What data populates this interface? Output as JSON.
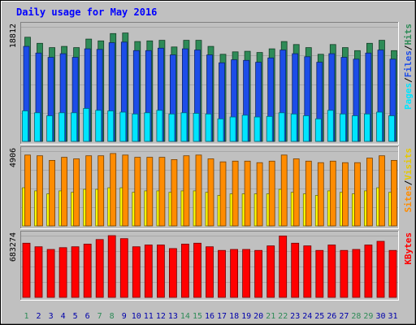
{
  "chart_data": {
    "type": "bar",
    "title": "Daily usage for May 2016",
    "colors": {
      "background": "#c0c0c0",
      "title": "#0000ff",
      "hits": "#2e8b57",
      "files": "#1c4de8",
      "pages": "#00e5ff",
      "visits": "#ffff00",
      "sites": "#ff8c00",
      "kbytes": "#ff0000",
      "weekend_label": "#2e8b57",
      "weekday_label": "#0000aa"
    },
    "x": [
      "1",
      "2",
      "3",
      "4",
      "5",
      "6",
      "7",
      "8",
      "9",
      "10",
      "11",
      "12",
      "13",
      "14",
      "15",
      "16",
      "17",
      "18",
      "19",
      "20",
      "21",
      "22",
      "23",
      "24",
      "25",
      "26",
      "27",
      "28",
      "29",
      "30",
      "31"
    ],
    "weekend_days": [
      "1",
      "7",
      "8",
      "14",
      "15",
      "21",
      "22",
      "28",
      "29"
    ],
    "panels": [
      {
        "id": "top",
        "max_label": "18812",
        "ymax": 18812,
        "legend": [
          "Pages",
          "/",
          "Files",
          "/",
          "Hits"
        ],
        "series": [
          {
            "name": "Hits",
            "values": [
              17100,
              16100,
              15400,
              15600,
              15400,
              16800,
              16500,
              17700,
              17800,
              16400,
              16500,
              16600,
              15500,
              16600,
              16600,
              15600,
              14300,
              14700,
              14800,
              14600,
              15200,
              16400,
              15900,
              15400,
              14300,
              15900,
              15400,
              14900,
              16100,
              16600,
              14900
            ]
          },
          {
            "name": "Files",
            "values": [
              15600,
              14500,
              13800,
              14400,
              13800,
              15200,
              15100,
              16200,
              16300,
              14900,
              14900,
              15300,
              14200,
              15200,
              15000,
              14200,
              12900,
              13400,
              13300,
              13000,
              13700,
              15000,
              14400,
              13900,
              13000,
              14400,
              13800,
              13500,
              14500,
              15000,
              13500
            ]
          },
          {
            "name": "Pages",
            "values": [
              5000,
              4700,
              4200,
              4700,
              4700,
              5400,
              5100,
              5000,
              4800,
              4500,
              4700,
              5100,
              4500,
              4700,
              4600,
              4500,
              3700,
              4000,
              4300,
              4000,
              4100,
              4700,
              4500,
              4200,
              3700,
              5100,
              4500,
              4200,
              4500,
              4800,
              4200
            ]
          }
        ]
      },
      {
        "id": "middle",
        "max_label": "4906",
        "ymax": 4906,
        "legend": [
          "Sites",
          "/",
          "Visits"
        ],
        "series": [
          {
            "name": "Visits",
            "values": [
              2500,
              2300,
              2100,
              2300,
              2200,
              2400,
              2400,
              2500,
              2500,
              2200,
              2300,
              2300,
              2200,
              2300,
              2300,
              2200,
              2000,
              2100,
              2100,
              2100,
              2100,
              2400,
              2200,
              2100,
              2000,
              2300,
              2200,
              2100,
              2300,
              2500,
              2200
            ]
          },
          {
            "name": "Sites",
            "values": [
              4650,
              4600,
              4300,
              4500,
              4400,
              4600,
              4600,
              4750,
              4650,
              4500,
              4500,
              4500,
              4350,
              4600,
              4650,
              4400,
              4200,
              4250,
              4250,
              4150,
              4250,
              4650,
              4400,
              4250,
              4150,
              4250,
              4150,
              4150,
              4450,
              4600,
              4300
            ]
          }
        ]
      },
      {
        "id": "bottom",
        "max_label": "683274",
        "ymax": 683274,
        "legend": [
          "KBytes"
        ],
        "series": [
          {
            "name": "KBytes",
            "values": [
              600000,
              560000,
              530000,
              550000,
              560000,
              590000,
              640000,
              683274,
              650000,
              560000,
              580000,
              580000,
              540000,
              590000,
              600000,
              560000,
              520000,
              530000,
              530000,
              520000,
              570000,
              680000,
              600000,
              570000,
              520000,
              580000,
              520000,
              530000,
              580000,
              620000,
              520000
            ]
          }
        ]
      }
    ]
  }
}
